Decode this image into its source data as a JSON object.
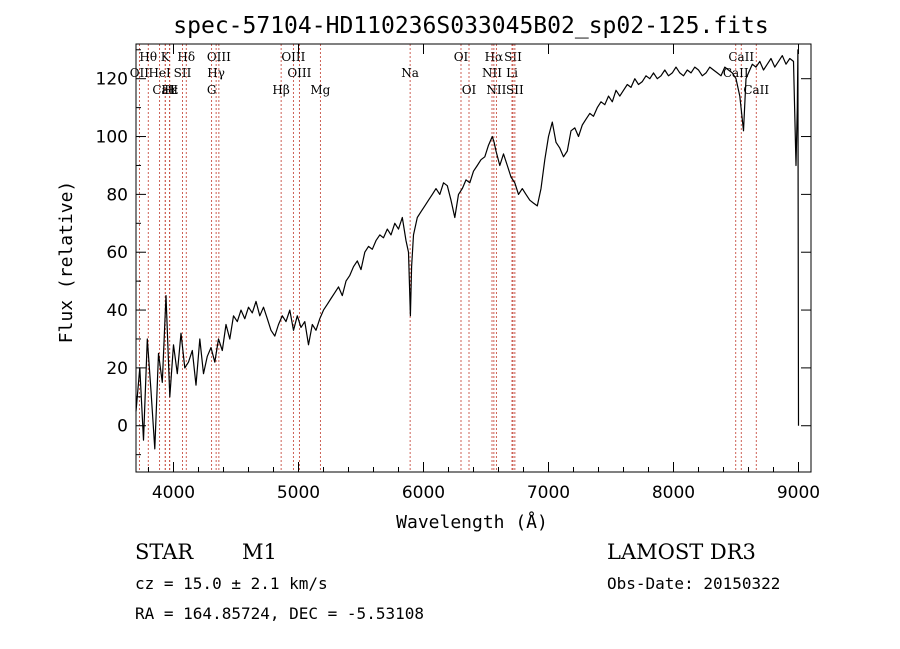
{
  "chart_data": {
    "type": "line",
    "title": "spec-57104-HD110236S033045B02_sp02-125.fits",
    "xlabel": "Wavelength (Å)",
    "ylabel": "Flux (relative)",
    "xlim": [
      3700,
      9100
    ],
    "ylim": [
      -16,
      132
    ],
    "x_ticks": [
      4000,
      5000,
      6000,
      7000,
      8000,
      9000
    ],
    "y_ticks": [
      0,
      20,
      40,
      60,
      80,
      100,
      120
    ],
    "series": [
      {
        "name": "flux",
        "x": [
          3700,
          3730,
          3760,
          3790,
          3820,
          3850,
          3880,
          3910,
          3940,
          3970,
          4000,
          4030,
          4060,
          4090,
          4120,
          4150,
          4180,
          4210,
          4240,
          4270,
          4300,
          4330,
          4360,
          4390,
          4420,
          4450,
          4480,
          4510,
          4540,
          4570,
          4600,
          4630,
          4660,
          4690,
          4720,
          4750,
          4780,
          4810,
          4840,
          4870,
          4900,
          4930,
          4960,
          4990,
          5020,
          5050,
          5080,
          5110,
          5140,
          5170,
          5200,
          5230,
          5260,
          5290,
          5320,
          5350,
          5380,
          5410,
          5440,
          5470,
          5500,
          5530,
          5560,
          5590,
          5620,
          5650,
          5680,
          5710,
          5740,
          5770,
          5800,
          5830,
          5860,
          5880,
          5895,
          5905,
          5920,
          5950,
          5980,
          6010,
          6040,
          6070,
          6100,
          6130,
          6160,
          6190,
          6220,
          6250,
          6280,
          6310,
          6340,
          6370,
          6400,
          6430,
          6460,
          6490,
          6520,
          6550,
          6565,
          6580,
          6610,
          6640,
          6670,
          6700,
          6730,
          6760,
          6790,
          6820,
          6850,
          6880,
          6910,
          6940,
          6970,
          7000,
          7030,
          7060,
          7090,
          7120,
          7150,
          7180,
          7210,
          7240,
          7270,
          7300,
          7330,
          7360,
          7390,
          7420,
          7450,
          7480,
          7510,
          7540,
          7570,
          7600,
          7630,
          7660,
          7690,
          7720,
          7750,
          7780,
          7810,
          7840,
          7870,
          7900,
          7930,
          7960,
          7990,
          8020,
          8050,
          8080,
          8110,
          8140,
          8170,
          8200,
          8230,
          8260,
          8290,
          8320,
          8350,
          8380,
          8410,
          8440,
          8470,
          8500,
          8530,
          8560,
          8580,
          8600,
          8630,
          8660,
          8690,
          8720,
          8750,
          8780,
          8810,
          8840,
          8870,
          8900,
          8930,
          8960,
          8980,
          8990,
          8995,
          9000
        ],
        "values": [
          5,
          20,
          -5,
          30,
          12,
          -8,
          25,
          15,
          45,
          10,
          28,
          18,
          32,
          20,
          22,
          26,
          14,
          30,
          18,
          24,
          27,
          22,
          30,
          26,
          35,
          30,
          38,
          36,
          40,
          37,
          41,
          39,
          43,
          38,
          41,
          37,
          33,
          31,
          35,
          38,
          36,
          40,
          33,
          38,
          34,
          36,
          28,
          35,
          33,
          37,
          40,
          42,
          44,
          46,
          48,
          45,
          50,
          52,
          55,
          57,
          54,
          60,
          62,
          61,
          64,
          66,
          65,
          68,
          66,
          70,
          68,
          72,
          64,
          60,
          38,
          55,
          66,
          72,
          74,
          76,
          78,
          80,
          82,
          80,
          84,
          83,
          78,
          72,
          80,
          82,
          85,
          84,
          88,
          90,
          92,
          93,
          97,
          100,
          98,
          95,
          90,
          94,
          90,
          86,
          84,
          80,
          82,
          80,
          78,
          77,
          76,
          82,
          92,
          100,
          105,
          98,
          96,
          93,
          95,
          102,
          103,
          100,
          104,
          106,
          108,
          107,
          110,
          112,
          111,
          114,
          112,
          116,
          114,
          116,
          118,
          117,
          120,
          118,
          119,
          121,
          120,
          122,
          120,
          121,
          123,
          121,
          122,
          124,
          122,
          121,
          123,
          122,
          124,
          123,
          121,
          122,
          124,
          123,
          122,
          121,
          124,
          123,
          122,
          120,
          114,
          102,
          120,
          122,
          125,
          124,
          126,
          123,
          125,
          127,
          124,
          126,
          128,
          125,
          127,
          126,
          90,
          110,
          130,
          0
        ]
      }
    ],
    "line_marks": [
      {
        "label": "Hθ",
        "w": 3798,
        "row": 0
      },
      {
        "label": "OII",
        "w": 3727,
        "row": 1
      },
      {
        "label": "CaII",
        "w": 3934,
        "row": 2
      },
      {
        "label": "K",
        "w": 3934,
        "row": 0
      },
      {
        "label": "HeI",
        "w": 3889,
        "row": 1
      },
      {
        "label": "Hε",
        "w": 3970,
        "row": 2
      },
      {
        "label": "Hδ",
        "w": 4102,
        "row": 0
      },
      {
        "label": "SII",
        "w": 4072,
        "row": 1
      },
      {
        "label": "H",
        "w": 3969,
        "row": 2
      },
      {
        "label": "OIII",
        "w": 4363,
        "row": 0
      },
      {
        "label": "Hγ",
        "w": 4341,
        "row": 1
      },
      {
        "label": "G",
        "w": 4305,
        "row": 2
      },
      {
        "label": "Hβ",
        "w": 4861,
        "row": 2
      },
      {
        "label": "OIII",
        "w": 4959,
        "row": 0
      },
      {
        "label": "OIII",
        "w": 5007,
        "row": 1
      },
      {
        "label": "Mg",
        "w": 5175,
        "row": 2
      },
      {
        "label": "Na",
        "w": 5893,
        "row": 1
      },
      {
        "label": "OI",
        "w": 6300,
        "row": 0
      },
      {
        "label": "OI",
        "w": 6364,
        "row": 2
      },
      {
        "label": "Hα",
        "w": 6563,
        "row": 0
      },
      {
        "label": "NII",
        "w": 6548,
        "row": 1
      },
      {
        "label": "NII",
        "w": 6583,
        "row": 2
      },
      {
        "label": "SII",
        "w": 6716,
        "row": 0
      },
      {
        "label": "Li",
        "w": 6708,
        "row": 1
      },
      {
        "label": "SII",
        "w": 6731,
        "row": 2
      },
      {
        "label": "CaII",
        "w": 8542,
        "row": 0
      },
      {
        "label": "CaII",
        "w": 8498,
        "row": 1
      },
      {
        "label": "CaII",
        "w": 8662,
        "row": 2
      }
    ]
  },
  "info": {
    "class": "STAR",
    "subclass": "M1",
    "survey": "LAMOST DR3",
    "cz": "cz = 15.0 ± 2.1 km/s",
    "obs_date": "Obs-Date: 20150322",
    "coords": "RA = 164.85724, DEC =  -5.53108"
  },
  "colors": {
    "line_marker": "#c0392b",
    "spectrum": "#000000"
  }
}
